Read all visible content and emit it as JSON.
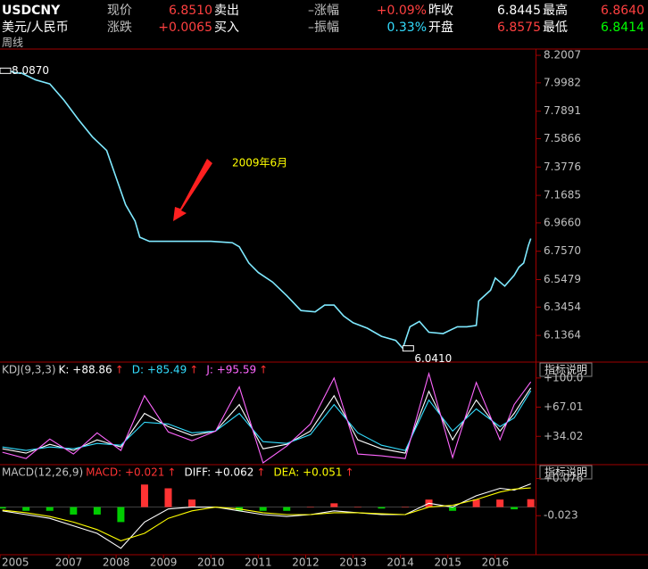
{
  "header": {
    "symbol": "USDCNY",
    "name": "美元/人民币",
    "period": "周线",
    "rows": [
      [
        "现价",
        "6.8510",
        "卖出",
        "–涨幅",
        "+0.09%",
        "昨收",
        "6.8445",
        "最高",
        "6.8640"
      ],
      [
        "涨跌",
        "+0.0065",
        "买入",
        "–振幅",
        "0.33%",
        "开盘",
        "6.8575",
        "最低",
        "6.8414"
      ]
    ]
  },
  "arrow": "↑",
  "panel_button": "指标说明",
  "chart_data": [
    {
      "type": "line",
      "annotations": [
        "2009年6月"
      ],
      "x": [
        2005.55,
        2005.7,
        2005.9,
        2006.0,
        2006.3,
        2006.6,
        2006.9,
        2007.2,
        2007.5,
        2007.8,
        2008.0,
        2008.2,
        2008.4,
        2008.5,
        2008.7,
        2009.0,
        2009.5,
        2010.0,
        2010.45,
        2010.6,
        2010.8,
        2011.0,
        2011.3,
        2011.6,
        2011.9,
        2012.2,
        2012.4,
        2012.6,
        2012.8,
        2013.0,
        2013.3,
        2013.6,
        2013.9,
        2014.05,
        2014.2,
        2014.4,
        2014.6,
        2014.9,
        2015.2,
        2015.4,
        2015.6,
        2015.65,
        2015.9,
        2016.0,
        2016.2,
        2016.4,
        2016.5,
        2016.6,
        2016.7,
        2016.75
      ],
      "series": [
        {
          "color": "#7fe9ff",
          "values": [
            8.087,
            8.09,
            8.07,
            8.07,
            8.02,
            7.99,
            7.87,
            7.73,
            7.6,
            7.5,
            7.3,
            7.1,
            6.98,
            6.86,
            6.83,
            6.83,
            6.83,
            6.83,
            6.82,
            6.79,
            6.67,
            6.6,
            6.53,
            6.43,
            6.32,
            6.31,
            6.36,
            6.36,
            6.28,
            6.23,
            6.19,
            6.13,
            6.1,
            6.041,
            6.2,
            6.24,
            6.16,
            6.15,
            6.2,
            6.2,
            6.21,
            6.39,
            6.47,
            6.56,
            6.5,
            6.58,
            6.64,
            6.67,
            6.8,
            6.85
          ]
        }
      ],
      "extremes": [
        {
          "x": 2005.55,
          "value": 8.087,
          "label": "8.0870"
        },
        {
          "x": 2014.05,
          "value": 6.041,
          "label": "6.0410"
        }
      ],
      "xlim": [
        2005.55,
        2016.85
      ],
      "xticks": [
        {
          "value": 2005.55,
          "label": "2005"
        },
        2007,
        2008,
        2009,
        2010,
        2011,
        2012,
        2013,
        2014,
        2015,
        2016
      ],
      "ylim": [
        5.94,
        8.247
      ],
      "yticks": [
        8.2007,
        7.9982,
        7.7891,
        7.5866,
        7.3776,
        7.1685,
        {
          "value": 6.966,
          "label": "6.9660"
        },
        {
          "value": 6.757,
          "label": "6.7570"
        },
        6.5479,
        6.3454,
        6.1364
      ]
    },
    {
      "type": "line",
      "title": "KDJ(9,3,3)",
      "x": [
        2005.6,
        2006.1,
        2006.6,
        2007.1,
        2007.6,
        2008.1,
        2008.6,
        2009.1,
        2009.6,
        2010.1,
        2010.6,
        2011.1,
        2011.6,
        2012.1,
        2012.6,
        2013.1,
        2013.6,
        2014.1,
        2014.6,
        2015.1,
        2015.6,
        2016.1,
        2016.4,
        2016.75
      ],
      "series": [
        {
          "name": "K",
          "label": "K: +88.86",
          "color": "#ffffff",
          "values": [
            20,
            15,
            25,
            18,
            30,
            22,
            60,
            45,
            35,
            40,
            70,
            20,
            25,
            40,
            80,
            30,
            20,
            15,
            85,
            30,
            75,
            40,
            60,
            88.86
          ]
        },
        {
          "name": "D",
          "label": "D: +85.49",
          "color": "#33ddff",
          "values": [
            22,
            18,
            22,
            20,
            26,
            24,
            50,
            48,
            38,
            40,
            60,
            28,
            26,
            36,
            70,
            38,
            24,
            18,
            75,
            40,
            65,
            45,
            55,
            85.49
          ]
        },
        {
          "name": "J",
          "label": "J: +95.59",
          "color": "#ff66ff",
          "values": [
            16,
            9,
            31,
            14,
            38,
            18,
            80,
            39,
            29,
            40,
            90,
            4,
            23,
            48,
            100,
            14,
            12,
            9,
            105,
            10,
            95,
            30,
            70,
            95.59
          ]
        }
      ],
      "xlim": [
        2005.55,
        2016.85
      ],
      "ylim": [
        2,
        118
      ],
      "yticks": [
        {
          "value": 100,
          "label": "+100.0"
        },
        {
          "value": 67.01,
          "label": "+67.01"
        },
        {
          "value": 34.02,
          "label": "+34.02"
        }
      ]
    },
    {
      "type": "line",
      "title": "MACD(12,26,9)",
      "x": [
        2005.6,
        2006.1,
        2006.6,
        2007.1,
        2007.6,
        2008.1,
        2008.6,
        2009.1,
        2009.6,
        2010.1,
        2010.6,
        2011.1,
        2011.6,
        2012.1,
        2012.6,
        2013.1,
        2013.6,
        2014.1,
        2014.6,
        2015.1,
        2015.6,
        2016.1,
        2016.4,
        2016.75
      ],
      "series": [
        {
          "name": "MACD",
          "label": "MACD: +0.021",
          "kind": "bar",
          "color": "#ff3333",
          "negative_color": "#00cc00",
          "values": [
            -0.004,
            -0.01,
            -0.01,
            -0.02,
            -0.02,
            -0.04,
            0.06,
            0.05,
            0.02,
            0,
            -0.01,
            -0.01,
            -0.01,
            0,
            0.01,
            0,
            -0.004,
            0,
            0.02,
            -0.01,
            0.02,
            0.02,
            -0.006,
            0.021
          ]
        },
        {
          "name": "DIFF",
          "label": "DIFF: +0.062",
          "color": "#ffffff",
          "values": [
            -0.01,
            -0.02,
            -0.03,
            -0.05,
            -0.07,
            -0.11,
            -0.04,
            -0.005,
            0,
            0,
            -0.01,
            -0.02,
            -0.025,
            -0.02,
            -0.01,
            -0.015,
            -0.02,
            -0.02,
            0.01,
            0,
            0.03,
            0.05,
            0.045,
            0.062
          ]
        },
        {
          "name": "DEA",
          "label": "DEA: +0.051",
          "color": "#ffff00",
          "values": [
            -0.008,
            -0.015,
            -0.025,
            -0.04,
            -0.06,
            -0.09,
            -0.07,
            -0.03,
            -0.01,
            0,
            -0.005,
            -0.015,
            -0.02,
            -0.02,
            -0.015,
            -0.015,
            -0.018,
            -0.02,
            0,
            0.005,
            0.02,
            0.04,
            0.048,
            0.051
          ]
        }
      ],
      "xlim": [
        2005.55,
        2016.85
      ],
      "ylim": [
        -0.127,
        0.113
      ],
      "yticks": [
        {
          "value": 0.076,
          "label": "+0.076"
        },
        -0.023
      ]
    }
  ]
}
